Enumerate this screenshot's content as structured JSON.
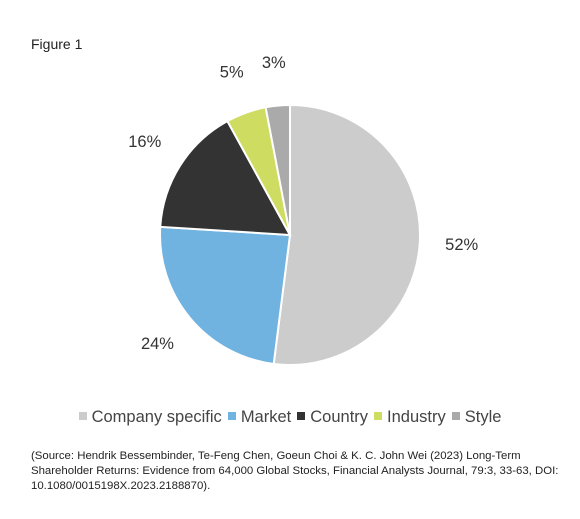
{
  "figure_label": "Figure 1",
  "chart_data": {
    "type": "pie",
    "categories": [
      "Company specific",
      "Market",
      "Country",
      "Industry",
      "Style"
    ],
    "values": [
      52,
      24,
      16,
      5,
      3
    ],
    "value_labels": [
      "52%",
      "24%",
      "16%",
      "5%",
      "3%"
    ],
    "colors": [
      "#cccccc",
      "#70b3e0",
      "#333333",
      "#cfdc62",
      "#aaaaaa"
    ],
    "legend": "bottom",
    "title": ""
  },
  "source": "(Source: Hendrik Bessembinder, Te-Feng Chen, Goeun Choi & K. C. John Wei (2023) Long-Term Shareholder Returns: Evidence from 64,000 Global Stocks, Financial Analysts Journal, 79:3, 33-63, DOI: 10.1080/0015198X.2023.2188870)."
}
